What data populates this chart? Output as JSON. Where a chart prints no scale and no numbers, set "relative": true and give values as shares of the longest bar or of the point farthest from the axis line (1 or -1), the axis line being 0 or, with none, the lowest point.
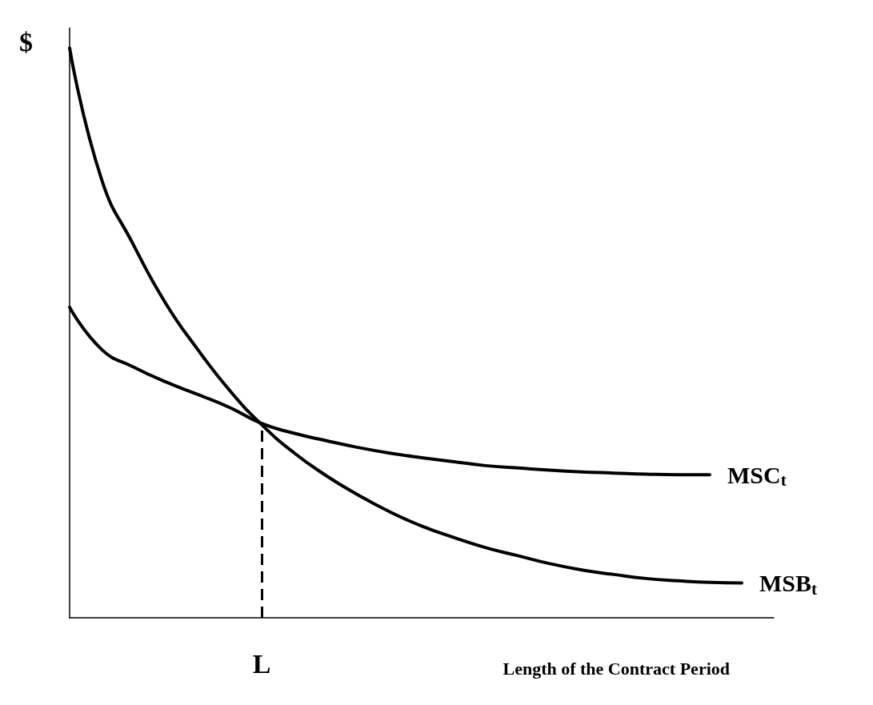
{
  "chart_data": {
    "type": "line",
    "relative": true,
    "ylabel": "$",
    "xlabel": "Length of the Contract Period",
    "categories": [
      null,
      null,
      null,
      null,
      null,
      null,
      null,
      null,
      null,
      null,
      null,
      null,
      null,
      null,
      null,
      null,
      null,
      null,
      null,
      null,
      null,
      null
    ],
    "series": [
      {
        "name": "MSB$_{t}$",
        "color": "#000000",
        "values": [
          1.0,
          0.769,
          0.654,
          0.552,
          0.471,
          0.399,
          0.339,
          0.29,
          0.25,
          0.216,
          0.186,
          0.161,
          0.141,
          0.123,
          0.109,
          0.095,
          0.084,
          0.076,
          0.069,
          0.065,
          0.062,
          0.061
        ]
      },
      {
        "name": "MSC$_{t}$",
        "color": "#000000",
        "values": [
          0.545,
          0.471,
          0.44,
          0.414,
          0.392,
          0.369,
          0.341,
          0.324,
          0.311,
          0.299,
          0.289,
          0.281,
          0.274,
          0.267,
          0.263,
          0.259,
          0.256,
          0.254,
          0.252,
          0.251,
          0.251,
          null
        ]
      }
    ],
    "annotations": [
      "L"
    ],
    "marker": "none",
    "line_style": "solid",
    "grid": false
  }
}
